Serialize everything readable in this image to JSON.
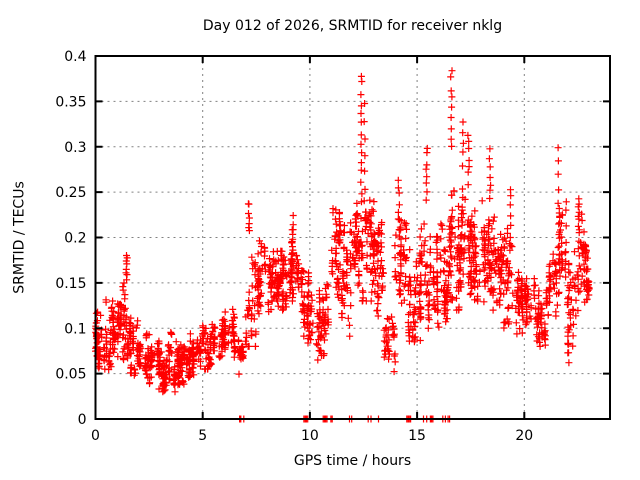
{
  "chart_data": {
    "type": "scatter",
    "title": "Day 012 of 2026, SRMTID for receiver nklg",
    "xlabel": "GPS time / hours",
    "ylabel": "SRMTID / TECUs",
    "xlim": [
      0,
      24
    ],
    "ylim": [
      0,
      0.4
    ],
    "xticks": {
      "values": [
        0,
        5,
        10,
        15,
        20
      ],
      "labels": [
        "0",
        "5",
        "10",
        "15",
        "20"
      ]
    },
    "yticks": {
      "values": [
        0,
        0.05,
        0.1,
        0.15,
        0.2,
        0.25,
        0.3,
        0.35,
        0.4
      ],
      "labels": [
        "0",
        "0.05",
        "0.1",
        "0.15",
        "0.2",
        "0.25",
        "0.3",
        "0.35",
        "0.4"
      ]
    },
    "grid": true,
    "legend": "none",
    "marker": "plus",
    "colors": {
      "marker": "#ff0000",
      "grid": "#808080",
      "axis": "#000000",
      "background": "#ffffff"
    },
    "bands_comment": "Dense scatter approximated as bands: [hour_start, hour_end, y_min, y_max, n_points]",
    "bands": [
      [
        0.0,
        0.5,
        0.055,
        0.125,
        55
      ],
      [
        0.5,
        1.0,
        0.05,
        0.145,
        55
      ],
      [
        1.0,
        1.5,
        0.06,
        0.16,
        55
      ],
      [
        1.5,
        2.0,
        0.045,
        0.12,
        50
      ],
      [
        2.0,
        2.5,
        0.04,
        0.105,
        50
      ],
      [
        2.5,
        3.0,
        0.032,
        0.095,
        50
      ],
      [
        3.0,
        3.5,
        0.03,
        0.085,
        55
      ],
      [
        3.5,
        4.0,
        0.03,
        0.1,
        55
      ],
      [
        4.0,
        4.5,
        0.035,
        0.1,
        50
      ],
      [
        4.5,
        5.0,
        0.045,
        0.115,
        45
      ],
      [
        5.0,
        5.5,
        0.055,
        0.12,
        45
      ],
      [
        5.5,
        6.0,
        0.06,
        0.115,
        40
      ],
      [
        6.0,
        6.5,
        0.07,
        0.13,
        40
      ],
      [
        6.5,
        7.0,
        0.045,
        0.1,
        32
      ],
      [
        7.0,
        7.5,
        0.08,
        0.2,
        40
      ],
      [
        7.5,
        8.0,
        0.1,
        0.21,
        45
      ],
      [
        8.0,
        8.5,
        0.115,
        0.2,
        50
      ],
      [
        8.5,
        9.0,
        0.12,
        0.19,
        50
      ],
      [
        9.0,
        9.5,
        0.13,
        0.21,
        50
      ],
      [
        9.5,
        10.0,
        0.08,
        0.18,
        45
      ],
      [
        10.0,
        10.5,
        0.05,
        0.155,
        38
      ],
      [
        10.5,
        11.0,
        0.07,
        0.17,
        38
      ],
      [
        11.0,
        11.5,
        0.115,
        0.25,
        50
      ],
      [
        11.5,
        12.0,
        0.08,
        0.24,
        50
      ],
      [
        12.0,
        12.5,
        0.13,
        0.26,
        55
      ],
      [
        12.5,
        13.0,
        0.13,
        0.27,
        55
      ],
      [
        13.0,
        13.5,
        0.1,
        0.24,
        50
      ],
      [
        13.5,
        14.0,
        0.05,
        0.155,
        38
      ],
      [
        14.0,
        14.5,
        0.125,
        0.26,
        50
      ],
      [
        14.5,
        15.0,
        0.08,
        0.2,
        45
      ],
      [
        15.0,
        15.5,
        0.08,
        0.24,
        45
      ],
      [
        15.5,
        16.0,
        0.1,
        0.22,
        50
      ],
      [
        16.0,
        16.5,
        0.1,
        0.23,
        55
      ],
      [
        16.5,
        17.0,
        0.12,
        0.26,
        55
      ],
      [
        17.0,
        17.5,
        0.12,
        0.27,
        55
      ],
      [
        17.5,
        18.0,
        0.13,
        0.25,
        55
      ],
      [
        18.0,
        18.5,
        0.12,
        0.26,
        55
      ],
      [
        18.5,
        19.0,
        0.12,
        0.25,
        50
      ],
      [
        19.0,
        19.5,
        0.1,
        0.25,
        45
      ],
      [
        19.5,
        20.0,
        0.08,
        0.165,
        45
      ],
      [
        20.0,
        20.5,
        0.09,
        0.16,
        45
      ],
      [
        20.5,
        21.0,
        0.08,
        0.155,
        45
      ],
      [
        21.0,
        21.5,
        0.1,
        0.185,
        40
      ],
      [
        21.5,
        22.0,
        0.11,
        0.25,
        45
      ],
      [
        22.0,
        22.5,
        0.055,
        0.2,
        45
      ],
      [
        22.5,
        22.95,
        0.1,
        0.245,
        45
      ],
      [
        22.8,
        23.05,
        0.13,
        0.2,
        22
      ]
    ],
    "spike_columns_comment": "Tall vertical streaks: [hour, y_min, y_max, n_points]",
    "spike_columns": [
      [
        1.45,
        0.155,
        0.178,
        8
      ],
      [
        7.15,
        0.205,
        0.24,
        7
      ],
      [
        9.2,
        0.185,
        0.222,
        8
      ],
      [
        12.4,
        0.24,
        0.38,
        14
      ],
      [
        12.55,
        0.22,
        0.345,
        8
      ],
      [
        14.15,
        0.2,
        0.265,
        8
      ],
      [
        15.45,
        0.24,
        0.3,
        8
      ],
      [
        16.6,
        0.3,
        0.385,
        9
      ],
      [
        17.15,
        0.28,
        0.33,
        5
      ],
      [
        17.4,
        0.26,
        0.315,
        7
      ],
      [
        18.4,
        0.24,
        0.295,
        7
      ],
      [
        19.35,
        0.2,
        0.255,
        6
      ],
      [
        21.6,
        0.24,
        0.3,
        5
      ],
      [
        22.55,
        0.19,
        0.245,
        8
      ]
    ],
    "zero_value_hours": [
      6.72,
      6.78,
      6.92,
      9.72,
      9.78,
      9.84,
      9.9,
      10.62,
      10.68,
      10.74,
      10.8,
      10.98,
      11.04,
      11.85,
      11.95,
      12.72,
      12.85,
      13.2,
      14.52,
      14.58,
      14.64,
      14.7,
      15.3,
      15.45,
      15.62,
      15.68,
      15.74,
      16.2,
      16.32,
      16.45,
      16.52
    ]
  }
}
